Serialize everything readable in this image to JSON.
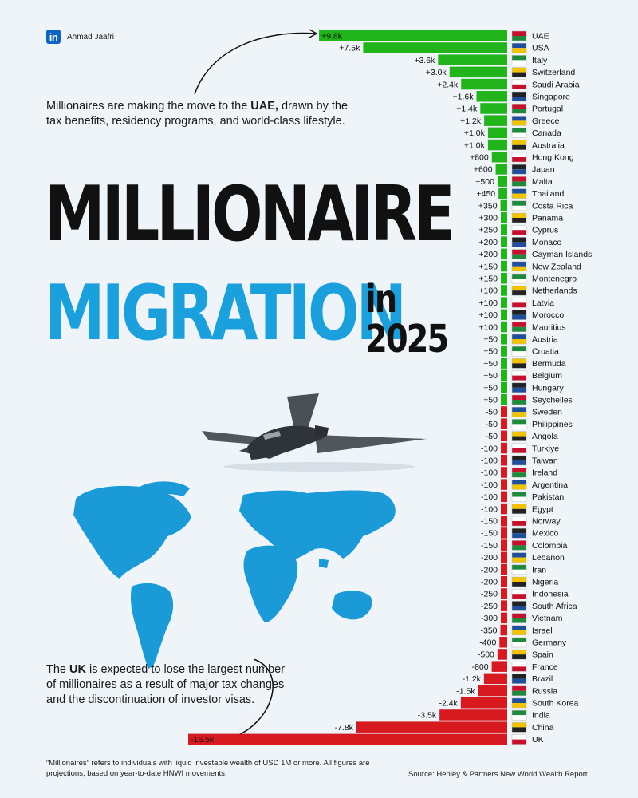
{
  "brand": {
    "icon": "linkedin-icon",
    "icon_text": "in",
    "name": "Ahmad Jaafri"
  },
  "title": {
    "line1": "MILLIONAIRE",
    "line2": "MIGRATION",
    "in": "in",
    "year": "2025"
  },
  "notes": {
    "top_pre": "Millionaires are making the move to the ",
    "top_bold": "UAE,",
    "top_post": " drawn by the tax benefits, residency programs, and world-class lifestyle.",
    "bottom_pre": "The ",
    "bottom_bold": "UK",
    "bottom_post": " is expected to lose the largest number of millionaires as a result of major tax changes and the discontinuation of investor visas."
  },
  "footnote": "“Millionaires” refers to individuals with liquid investable wealth of USD 1M or more. All figures are projections, based on year-to-date HNWI movements.",
  "source": "Source: Henley & Partners New World Wealth Report",
  "colors": {
    "positive": "#22b51b",
    "negative": "#d71920",
    "accent": "#1aa0dc",
    "background": "#eef4f8"
  },
  "chart_data": {
    "type": "bar",
    "orientation": "horizontal",
    "categories": [
      "UAE",
      "USA",
      "Italy",
      "Switzerland",
      "Saudi Arabia",
      "Singapore",
      "Portugal",
      "Greece",
      "Canada",
      "Australia",
      "Hong Kong",
      "Japan",
      "Malta",
      "Thailand",
      "Costa Rica",
      "Panama",
      "Cyprus",
      "Monaco",
      "Cayman Islands",
      "New Zealand",
      "Montenegro",
      "Netherlands",
      "Latvia",
      "Morocco",
      "Mauritius",
      "Austria",
      "Croatia",
      "Bermuda",
      "Belgium",
      "Hungary",
      "Seychelles",
      "Sweden",
      "Philippines",
      "Angola",
      "Turkiye",
      "Taiwan",
      "Ireland",
      "Argentina",
      "Pakistan",
      "Egypt",
      "Norway",
      "Mexico",
      "Colombia",
      "Lebanon",
      "Iran",
      "Nigeria",
      "Indonesia",
      "South Africa",
      "Vietnam",
      "Israel",
      "Germany",
      "Spain",
      "France",
      "Brazil",
      "Russia",
      "South Korea",
      "India",
      "China",
      "UK"
    ],
    "values": [
      9800,
      7500,
      3600,
      3000,
      2400,
      1600,
      1400,
      1200,
      1000,
      1000,
      800,
      600,
      500,
      450,
      350,
      300,
      250,
      200,
      200,
      150,
      150,
      100,
      100,
      100,
      100,
      50,
      50,
      50,
      50,
      50,
      50,
      -50,
      -50,
      -50,
      -100,
      -100,
      -100,
      -100,
      -100,
      -100,
      -150,
      -150,
      -150,
      -200,
      -200,
      -200,
      -250,
      -250,
      -300,
      -350,
      -400,
      -500,
      -800,
      -1200,
      -1500,
      -2400,
      -3500,
      -7800,
      -16500
    ],
    "labels": [
      "+9.8k",
      "+7.5k",
      "+3.6k",
      "+3.0k",
      "+2.4k",
      "+1.6k",
      "+1.4k",
      "+1.2k",
      "+1.0k",
      "+1.0k",
      "+800",
      "+600",
      "+500",
      "+450",
      "+350",
      "+300",
      "+250",
      "+200",
      "+200",
      "+150",
      "+150",
      "+100",
      "+100",
      "+100",
      "+100",
      "+50",
      "+50",
      "+50",
      "+50",
      "+50",
      "+50",
      "-50",
      "-50",
      "-50",
      "-100",
      "-100",
      "-100",
      "-100",
      "-100",
      "-100",
      "-150",
      "-150",
      "-150",
      "-200",
      "-200",
      "-200",
      "-250",
      "-250",
      "-300",
      "-350",
      "-400",
      "-500",
      "-800",
      "-1.2k",
      "-1.5k",
      "-2.4k",
      "-3.5k",
      "-7.8k",
      "-16.5k"
    ],
    "title": "MILLIONAIRE MIGRATION in 2025",
    "xlabel": "",
    "ylabel": "",
    "grid": false,
    "legend": "none"
  }
}
